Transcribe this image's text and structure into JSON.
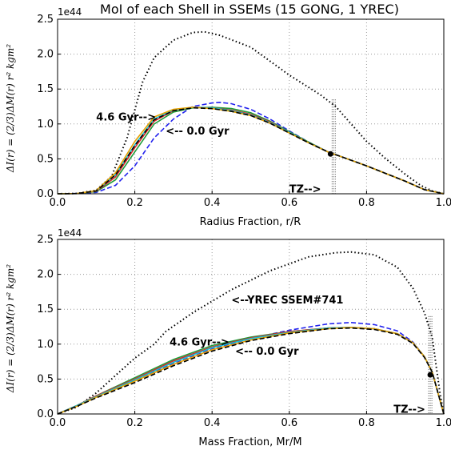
{
  "chart_data": [
    {
      "type": "line",
      "title": "MoI of each Shell in SSEMs (15 GONG, 1 YREC)",
      "xlabel": "Radius Fraction, r/R",
      "ylabel": "ΔI(r) = (2/3)ΔM(r) r² kgm²",
      "multiplier": "1e44",
      "xlim": [
        0.0,
        1.0
      ],
      "ylim": [
        0.0,
        2.5
      ],
      "xticks": [
        "0.0",
        "0.2",
        "0.4",
        "0.6",
        "0.8",
        "1.0"
      ],
      "yticks": [
        "0.0",
        "0.5",
        "1.0",
        "1.5",
        "2.0",
        "2.5"
      ],
      "grid": true,
      "annotations": [
        {
          "text": "4.6 Gyr-->",
          "x": 0.1,
          "y": 1.05
        },
        {
          "text": "<-- 0.0 Gyr",
          "x": 0.28,
          "y": 0.85
        },
        {
          "text": "TZ-->",
          "x": 0.6,
          "y": 0.02
        }
      ],
      "tz_x": 0.715,
      "series": [
        {
          "style": "dotted",
          "color": "#000000",
          "x": [
            0.0,
            0.05,
            0.1,
            0.14,
            0.18,
            0.2,
            0.22,
            0.25,
            0.3,
            0.35,
            0.38,
            0.42,
            0.5,
            0.6,
            0.68,
            0.72,
            0.76,
            0.8,
            0.85,
            0.9,
            0.94,
            0.97,
            1.0
          ],
          "y": [
            0.0,
            0.005,
            0.05,
            0.25,
            0.8,
            1.2,
            1.6,
            1.95,
            2.2,
            2.31,
            2.32,
            2.27,
            2.1,
            1.7,
            1.42,
            1.25,
            1.0,
            0.75,
            0.5,
            0.28,
            0.12,
            0.04,
            0.0
          ]
        },
        {
          "style": "dashed",
          "color": "#2222ee",
          "x": [
            0.0,
            0.05,
            0.1,
            0.15,
            0.2,
            0.25,
            0.3,
            0.35,
            0.4,
            0.42,
            0.45,
            0.5,
            0.55,
            0.6,
            0.65,
            0.7,
            0.75,
            0.8,
            0.85,
            0.9,
            0.95,
            1.0
          ],
          "y": [
            0.0,
            0.003,
            0.02,
            0.12,
            0.4,
            0.8,
            1.07,
            1.25,
            1.3,
            1.31,
            1.29,
            1.21,
            1.07,
            0.9,
            0.74,
            0.6,
            0.5,
            0.4,
            0.29,
            0.18,
            0.06,
            0.0
          ]
        },
        {
          "style": "solid",
          "color": "#1f9c3a",
          "x": [
            0.0,
            0.05,
            0.1,
            0.15,
            0.2,
            0.25,
            0.3,
            0.35,
            0.4,
            0.45,
            0.5,
            0.55,
            0.6,
            0.65,
            0.7,
            0.75,
            0.8,
            0.85,
            0.9,
            0.95,
            1.0
          ],
          "y": [
            0.0,
            0.003,
            0.03,
            0.2,
            0.6,
            1.0,
            1.17,
            1.23,
            1.24,
            1.22,
            1.16,
            1.04,
            0.89,
            0.74,
            0.6,
            0.5,
            0.4,
            0.29,
            0.18,
            0.06,
            0.0
          ]
        },
        {
          "style": "solid",
          "color": "#d62728",
          "x": [
            0.0,
            0.05,
            0.1,
            0.15,
            0.2,
            0.25,
            0.3,
            0.35,
            0.4,
            0.45,
            0.5,
            0.55,
            0.6,
            0.65,
            0.7,
            0.75,
            0.8,
            0.85,
            0.9,
            0.95,
            1.0
          ],
          "y": [
            0.0,
            0.003,
            0.035,
            0.24,
            0.66,
            1.04,
            1.19,
            1.24,
            1.23,
            1.2,
            1.14,
            1.03,
            0.88,
            0.73,
            0.6,
            0.5,
            0.4,
            0.29,
            0.18,
            0.06,
            0.0
          ]
        },
        {
          "style": "solid",
          "color": "#17becf",
          "x": [
            0.0,
            0.05,
            0.1,
            0.15,
            0.2,
            0.25,
            0.3,
            0.35,
            0.4,
            0.45,
            0.5,
            0.55,
            0.6,
            0.65,
            0.7,
            0.75,
            0.8,
            0.85,
            0.9,
            0.95,
            1.0
          ],
          "y": [
            0.0,
            0.003,
            0.04,
            0.27,
            0.7,
            1.07,
            1.2,
            1.24,
            1.23,
            1.19,
            1.13,
            1.02,
            0.88,
            0.73,
            0.6,
            0.5,
            0.4,
            0.29,
            0.18,
            0.06,
            0.0
          ]
        },
        {
          "style": "solid",
          "color": "#e6a000",
          "x": [
            0.0,
            0.05,
            0.1,
            0.15,
            0.2,
            0.25,
            0.3,
            0.35,
            0.4,
            0.45,
            0.5,
            0.55,
            0.6,
            0.65,
            0.7,
            0.75,
            0.8,
            0.85,
            0.9,
            0.95,
            1.0
          ],
          "y": [
            0.0,
            0.003,
            0.045,
            0.3,
            0.75,
            1.1,
            1.21,
            1.24,
            1.22,
            1.18,
            1.12,
            1.01,
            0.87,
            0.73,
            0.6,
            0.5,
            0.4,
            0.29,
            0.18,
            0.06,
            0.0
          ]
        },
        {
          "style": "dashed",
          "color": "#000000",
          "x": [
            0.0,
            0.05,
            0.1,
            0.15,
            0.2,
            0.25,
            0.3,
            0.35,
            0.4,
            0.45,
            0.5,
            0.55,
            0.6,
            0.65,
            0.7,
            0.75,
            0.8,
            0.85,
            0.9,
            0.95,
            1.0
          ],
          "y": [
            0.0,
            0.003,
            0.04,
            0.27,
            0.69,
            1.06,
            1.19,
            1.23,
            1.22,
            1.18,
            1.12,
            1.01,
            0.87,
            0.73,
            0.6,
            0.5,
            0.4,
            0.29,
            0.18,
            0.06,
            0.0
          ]
        }
      ]
    },
    {
      "type": "line",
      "title": "",
      "xlabel": "Mass Fraction, Mr/M",
      "ylabel": "ΔI(r) = (2/3)ΔM(r) r² kgm²",
      "multiplier": "1e44",
      "xlim": [
        0.0,
        1.0
      ],
      "ylim": [
        0.0,
        2.5
      ],
      "xticks": [
        "0.0",
        "0.2",
        "0.4",
        "0.6",
        "0.8",
        "1.0"
      ],
      "yticks": [
        "0.0",
        "0.5",
        "1.0",
        "1.5",
        "2.0",
        "2.5"
      ],
      "grid": true,
      "annotations": [
        {
          "text": "<--YREC SSEM#741",
          "x": 0.45,
          "y": 1.58
        },
        {
          "text": "4.6 Gyr-->",
          "x": 0.29,
          "y": 0.98
        },
        {
          "text": "<-- 0.0 Gyr",
          "x": 0.46,
          "y": 0.85
        },
        {
          "text": "TZ-->",
          "x": 0.87,
          "y": 0.02
        }
      ],
      "tz_x": 0.965,
      "series": [
        {
          "style": "dotted",
          "color": "#000000",
          "x": [
            0.0,
            0.05,
            0.1,
            0.15,
            0.2,
            0.25,
            0.28,
            0.35,
            0.45,
            0.55,
            0.65,
            0.72,
            0.76,
            0.82,
            0.88,
            0.92,
            0.95,
            0.97,
            0.98,
            0.99,
            1.0
          ],
          "y": [
            0.0,
            0.1,
            0.3,
            0.55,
            0.8,
            1.0,
            1.18,
            1.45,
            1.78,
            2.05,
            2.25,
            2.31,
            2.32,
            2.28,
            2.1,
            1.8,
            1.45,
            1.1,
            0.7,
            0.3,
            0.0
          ]
        },
        {
          "style": "dashed",
          "color": "#2222ee",
          "x": [
            0.0,
            0.05,
            0.1,
            0.2,
            0.3,
            0.4,
            0.5,
            0.6,
            0.7,
            0.76,
            0.82,
            0.88,
            0.92,
            0.95,
            0.97,
            0.99,
            1.0
          ],
          "y": [
            0.0,
            0.12,
            0.25,
            0.48,
            0.72,
            0.93,
            1.08,
            1.2,
            1.29,
            1.31,
            1.28,
            1.19,
            1.03,
            0.82,
            0.6,
            0.2,
            0.0
          ]
        },
        {
          "style": "solid",
          "color": "#1f9c3a",
          "x": [
            0.0,
            0.05,
            0.1,
            0.2,
            0.3,
            0.4,
            0.5,
            0.6,
            0.7,
            0.76,
            0.82,
            0.88,
            0.92,
            0.95,
            0.97,
            0.99,
            1.0
          ],
          "y": [
            0.0,
            0.12,
            0.26,
            0.52,
            0.78,
            0.98,
            1.1,
            1.18,
            1.23,
            1.24,
            1.22,
            1.15,
            1.02,
            0.82,
            0.6,
            0.2,
            0.0
          ]
        },
        {
          "style": "solid",
          "color": "#d62728",
          "x": [
            0.0,
            0.05,
            0.1,
            0.2,
            0.3,
            0.4,
            0.5,
            0.6,
            0.7,
            0.76,
            0.82,
            0.88,
            0.92,
            0.95,
            0.97,
            0.99,
            1.0
          ],
          "y": [
            0.0,
            0.12,
            0.26,
            0.5,
            0.76,
            0.96,
            1.09,
            1.18,
            1.23,
            1.24,
            1.22,
            1.15,
            1.02,
            0.82,
            0.6,
            0.2,
            0.0
          ]
        },
        {
          "style": "solid",
          "color": "#17becf",
          "x": [
            0.0,
            0.05,
            0.1,
            0.2,
            0.3,
            0.4,
            0.5,
            0.6,
            0.7,
            0.76,
            0.82,
            0.88,
            0.92,
            0.95,
            0.97,
            0.99,
            1.0
          ],
          "y": [
            0.0,
            0.12,
            0.25,
            0.49,
            0.74,
            0.95,
            1.08,
            1.17,
            1.23,
            1.24,
            1.22,
            1.15,
            1.02,
            0.82,
            0.6,
            0.2,
            0.0
          ]
        },
        {
          "style": "solid",
          "color": "#e6a000",
          "x": [
            0.0,
            0.05,
            0.1,
            0.2,
            0.3,
            0.4,
            0.5,
            0.6,
            0.7,
            0.76,
            0.82,
            0.88,
            0.92,
            0.95,
            0.97,
            0.99,
            1.0
          ],
          "y": [
            0.0,
            0.11,
            0.24,
            0.47,
            0.71,
            0.92,
            1.06,
            1.16,
            1.22,
            1.24,
            1.22,
            1.15,
            1.02,
            0.82,
            0.6,
            0.2,
            0.0
          ]
        },
        {
          "style": "dashed",
          "color": "#000000",
          "x": [
            0.0,
            0.05,
            0.1,
            0.2,
            0.3,
            0.4,
            0.5,
            0.6,
            0.7,
            0.76,
            0.82,
            0.88,
            0.92,
            0.95,
            0.97,
            0.99,
            1.0
          ],
          "y": [
            0.0,
            0.11,
            0.23,
            0.45,
            0.69,
            0.9,
            1.05,
            1.15,
            1.22,
            1.23,
            1.21,
            1.14,
            1.01,
            0.81,
            0.6,
            0.2,
            0.0
          ]
        }
      ]
    }
  ]
}
